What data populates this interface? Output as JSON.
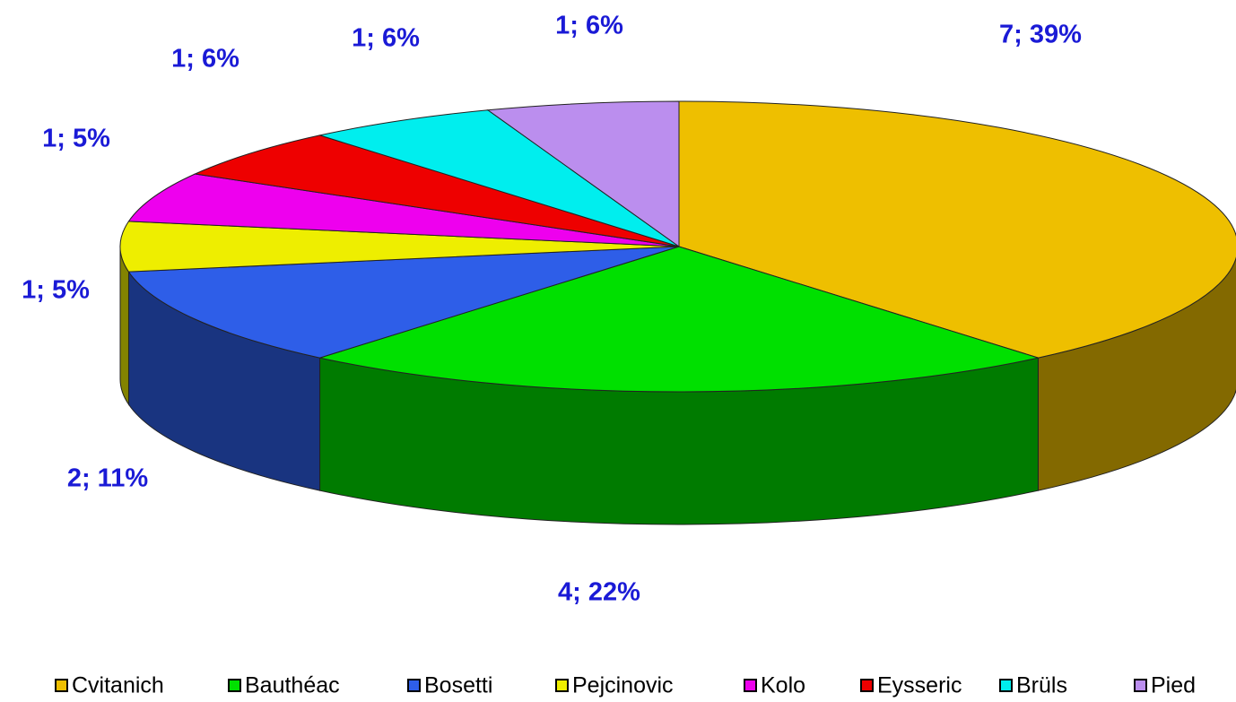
{
  "chart_data": {
    "type": "pie3d",
    "categories": [
      "Cvitanich",
      "Bauthéac",
      "Bosetti",
      "Pejcinovic",
      "Kolo",
      "Eysseric",
      "Brüls",
      "Pied"
    ],
    "values": [
      7,
      4,
      2,
      1,
      1,
      1,
      1,
      1
    ],
    "value_labels": [
      "7; 39%",
      "4; 22%",
      "2; 11%",
      "1; 5%",
      "1; 5%",
      "1; 6%",
      "1; 6%",
      "1; 6%"
    ],
    "colors": [
      "#eebf00",
      "#00e000",
      "#2e5ee8",
      "#eeee00",
      "#ee00ee",
      "#ee0000",
      "#00eeee",
      "#bb8eee"
    ],
    "legend": "bottom"
  }
}
